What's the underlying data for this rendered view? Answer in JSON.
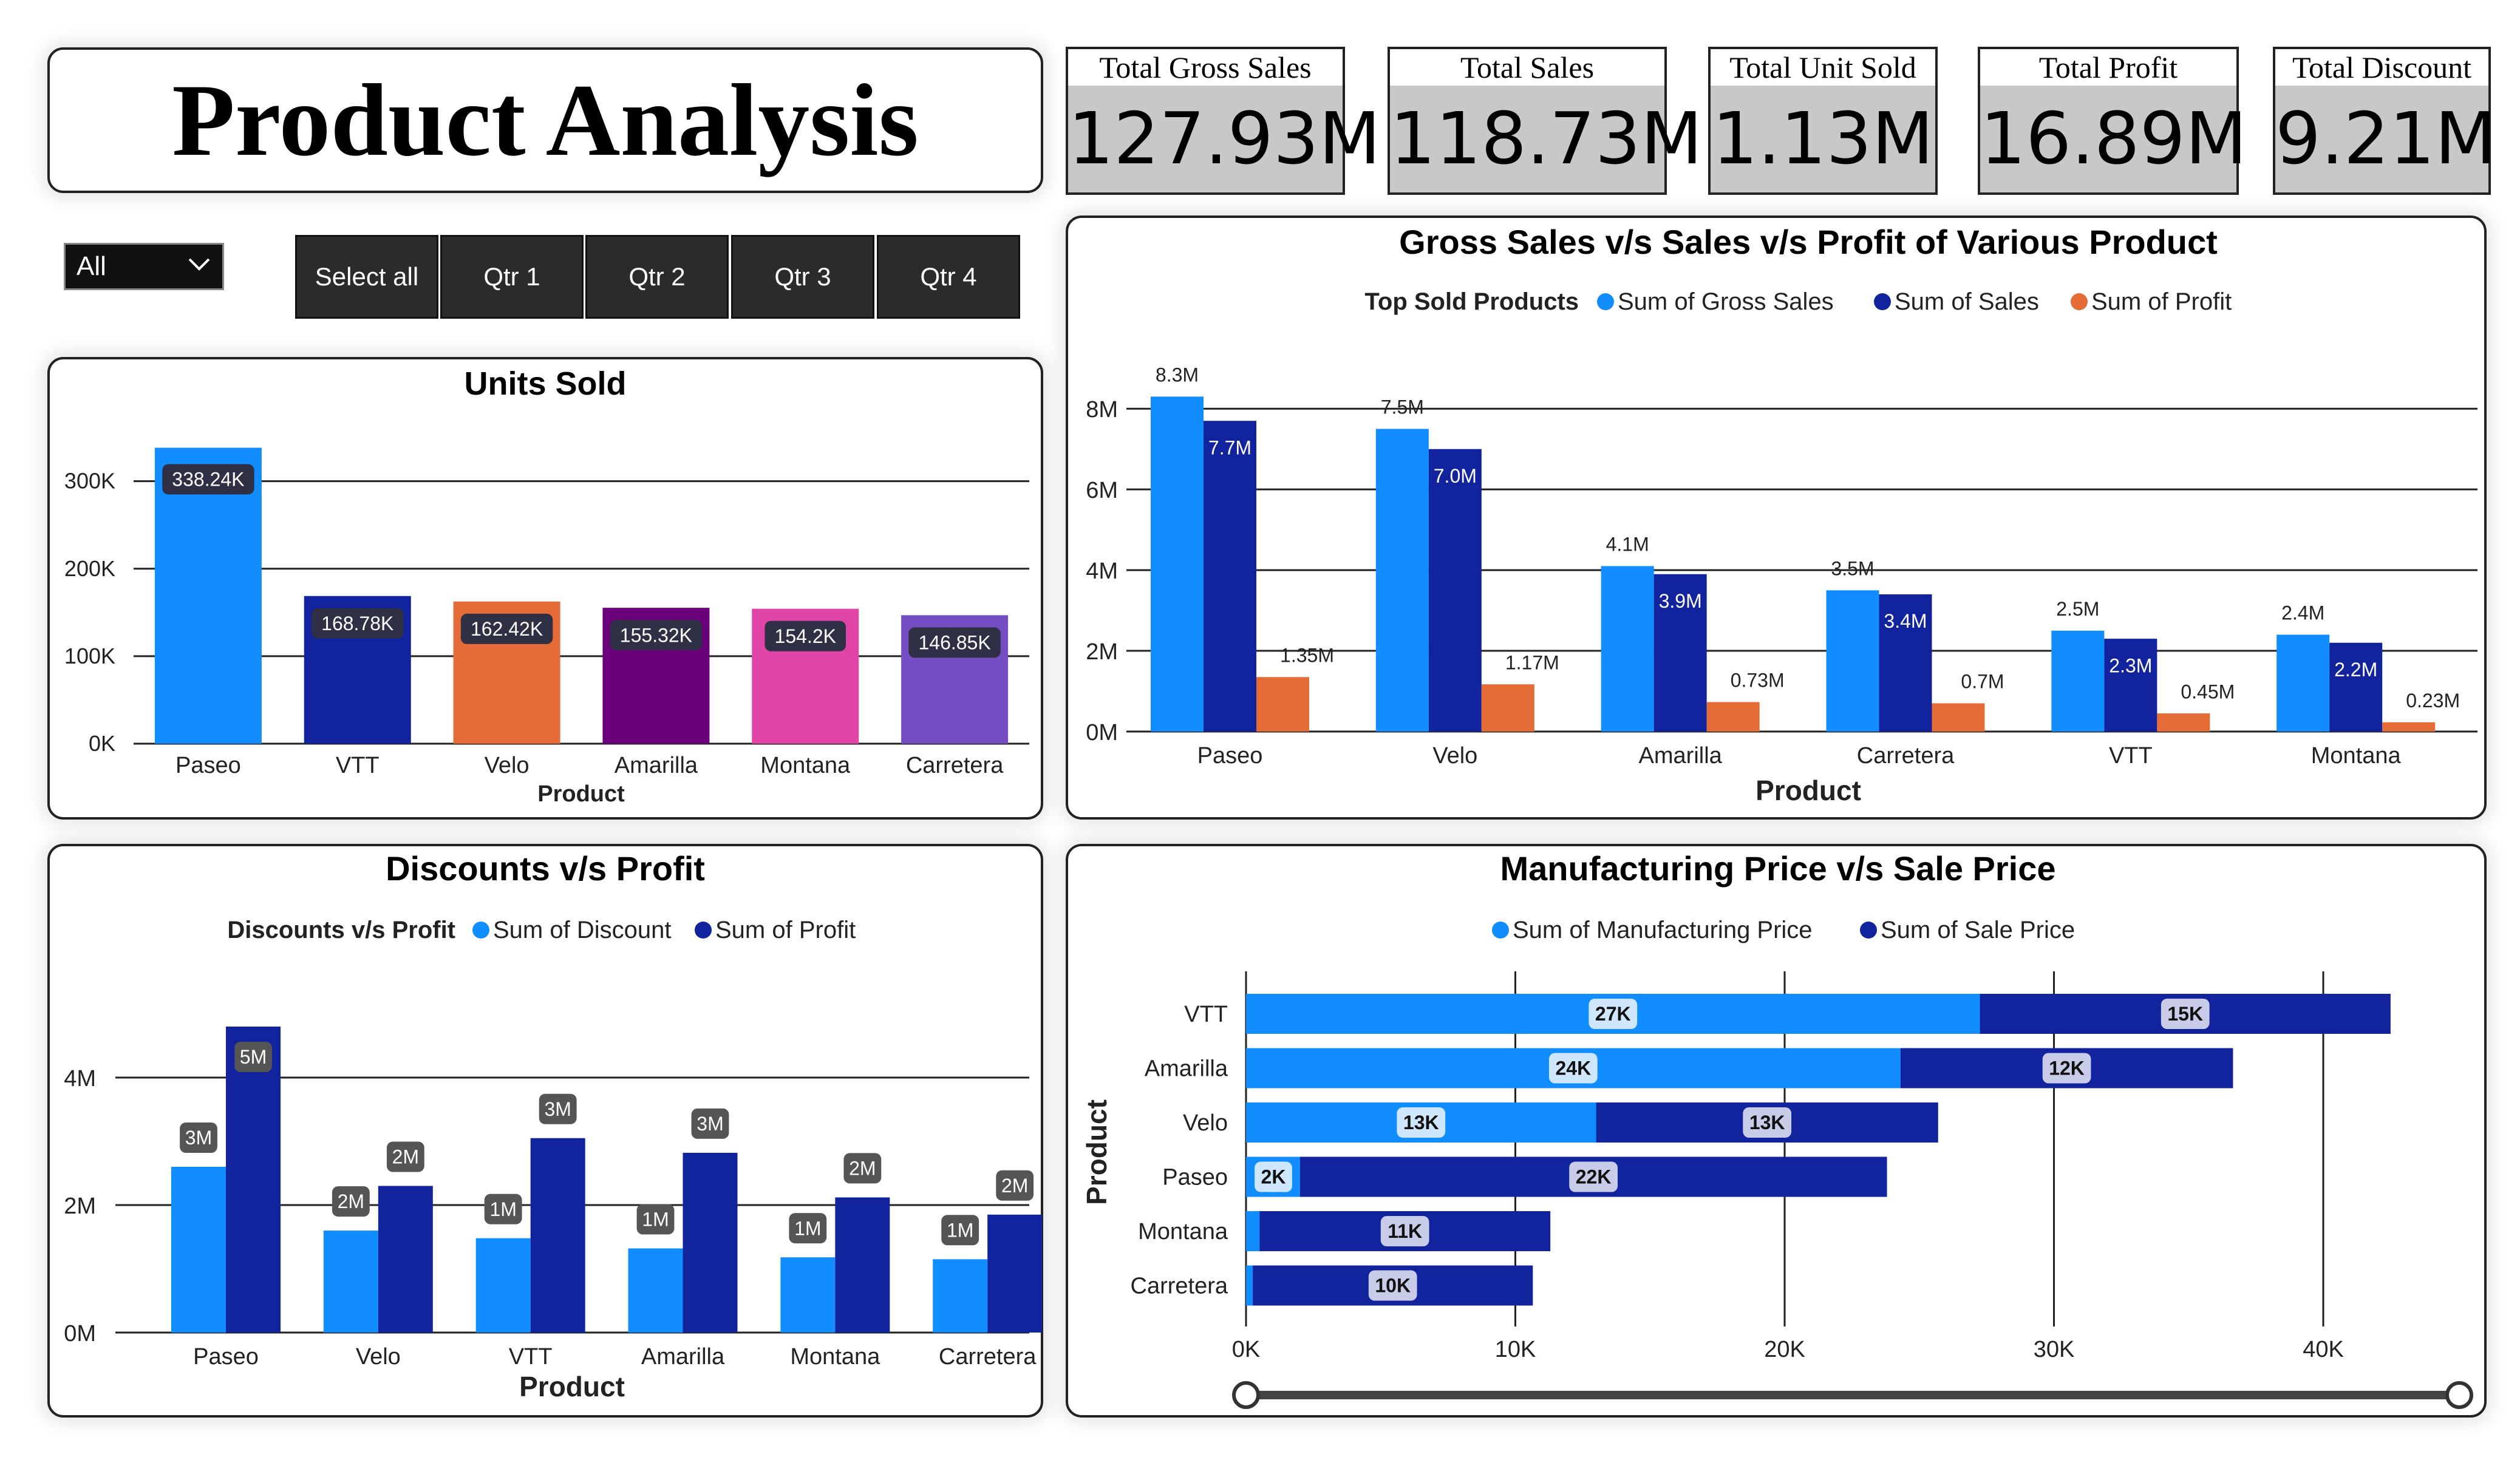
{
  "page_title": "Product Analysis",
  "kpis": [
    {
      "label": "Total Gross Sales",
      "value": "127.93M"
    },
    {
      "label": "Total Sales",
      "value": "118.73M"
    },
    {
      "label": "Total Unit Sold",
      "value": "1.13M"
    },
    {
      "label": "Total Profit",
      "value": "16.89M"
    },
    {
      "label": "Total Discount",
      "value": "9.21M"
    }
  ],
  "filter": {
    "selected": "All"
  },
  "quarter_buttons": [
    "Select all",
    "Qtr 1",
    "Qtr 2",
    "Qtr 3",
    "Qtr 4"
  ],
  "colors": {
    "light_blue": "#118dff",
    "dark_blue": "#12239e",
    "orange": "#e66c37",
    "purple": "#6b007b",
    "pink": "#e044a7",
    "violet": "#744ec2"
  },
  "chart_data": [
    {
      "id": "units",
      "type": "bar",
      "title": "Units Sold",
      "xlabel": "Product",
      "ylabel": "",
      "categories": [
        "Paseo",
        "VTT",
        "Velo",
        "Amarilla",
        "Montana",
        "Carretera"
      ],
      "values": [
        338240,
        168780,
        162420,
        155320,
        154200,
        146850
      ],
      "data_labels": [
        "338.24K",
        "168.78K",
        "162.42K",
        "155.32K",
        "154.2K",
        "146.85K"
      ],
      "bar_colors": [
        "#118dff",
        "#12239e",
        "#e66c37",
        "#6b007b",
        "#e044a7",
        "#744ec2"
      ],
      "ylim": [
        0,
        340000
      ],
      "yticks": [
        0,
        100000,
        200000,
        300000
      ],
      "ytick_labels": [
        "0K",
        "100K",
        "200K",
        "300K"
      ],
      "grid": true
    },
    {
      "id": "gross",
      "type": "bar",
      "title": "Gross Sales v/s Sales v/s Profit of Various Product",
      "legend_title": "Top Sold Products",
      "legend_position": "top",
      "xlabel": "Product",
      "ylabel": "",
      "categories": [
        "Paseo",
        "Velo",
        "Amarilla",
        "Carretera",
        "VTT",
        "Montana"
      ],
      "series": [
        {
          "name": "Sum of Gross Sales",
          "color": "#118dff",
          "values": [
            8.3,
            7.5,
            4.1,
            3.5,
            2.5,
            2.4
          ],
          "labels": [
            "8.3M",
            "7.5M",
            "4.1M",
            "3.5M",
            "2.5M",
            "2.4M"
          ]
        },
        {
          "name": "Sum of Sales",
          "color": "#12239e",
          "values": [
            7.7,
            7.0,
            3.9,
            3.4,
            2.3,
            2.2
          ],
          "labels": [
            "7.7M",
            "7.0M",
            "3.9M",
            "3.4M",
            "2.3M",
            "2.2M"
          ]
        },
        {
          "name": "Sum of Profit",
          "color": "#e66c37",
          "values": [
            1.35,
            1.17,
            0.73,
            0.7,
            0.45,
            0.23
          ],
          "labels": [
            "1.35M",
            "1.17M",
            "0.73M",
            "0.7M",
            "0.45M",
            "0.23M"
          ]
        }
      ],
      "ylim": [
        0,
        8.5
      ],
      "yticks": [
        0,
        2,
        4,
        6,
        8
      ],
      "ytick_labels": [
        "0M",
        "2M",
        "4M",
        "6M",
        "8M"
      ],
      "grid": true
    },
    {
      "id": "discount",
      "type": "bar",
      "title": "Discounts v/s Profit",
      "legend_title": "Discounts v/s Profit",
      "legend_position": "top",
      "xlabel": "Product",
      "ylabel": "",
      "categories": [
        "Paseo",
        "Velo",
        "VTT",
        "Amarilla",
        "Montana",
        "Carretera"
      ],
      "series": [
        {
          "name": "Sum of Discount",
          "color": "#118dff",
          "values": [
            2.6,
            1.6,
            1.48,
            1.32,
            1.18,
            1.15
          ],
          "labels": [
            "3M",
            "2M",
            "1M",
            "1M",
            "1M",
            "1M"
          ]
        },
        {
          "name": "Sum of Profit",
          "color": "#12239e",
          "values": [
            4.8,
            2.3,
            3.05,
            2.82,
            2.12,
            1.85
          ],
          "labels": [
            "5M",
            "2M",
            "3M",
            "3M",
            "2M",
            "2M"
          ]
        }
      ],
      "ylim": [
        0,
        5
      ],
      "yticks": [
        0,
        2,
        4
      ],
      "ytick_labels": [
        "0M",
        "2M",
        "4M"
      ],
      "grid": true
    },
    {
      "id": "price",
      "type": "bar",
      "orientation": "horizontal",
      "stacked": true,
      "title": "Manufacturing Price v/s Sale Price",
      "legend_position": "top",
      "xlabel": "",
      "ylabel": "Product",
      "categories": [
        "VTT",
        "Amarilla",
        "Velo",
        "Paseo",
        "Montana",
        "Carretera"
      ],
      "series": [
        {
          "name": "Sum of Manufacturing Price",
          "color": "#118dff",
          "values": [
            27250,
            24300,
            13000,
            2000,
            500,
            250
          ],
          "labels": [
            "27K",
            "24K",
            "13K",
            "2K",
            "",
            ""
          ]
        },
        {
          "name": "Sum of Sale Price",
          "color": "#12239e",
          "values": [
            15250,
            12350,
            12700,
            21800,
            10800,
            10400
          ],
          "labels": [
            "15K",
            "12K",
            "13K",
            "22K",
            "11K",
            "10K"
          ]
        }
      ],
      "xlim": [
        0,
        42500
      ],
      "xticks": [
        0,
        10000,
        20000,
        30000,
        40000
      ],
      "xtick_labels": [
        "0K",
        "10K",
        "20K",
        "30K",
        "40K"
      ],
      "grid": true
    }
  ]
}
